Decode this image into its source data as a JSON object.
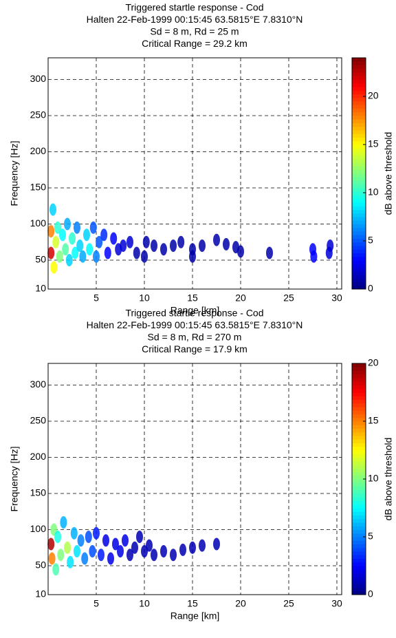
{
  "chart_data": [
    {
      "type": "scatter",
      "colormap": "jet",
      "grid": true,
      "title": [
        "Triggered startle response - Cod",
        "Halten 22-Feb-1999 00:15:45 63.5815°E    7.8310°N",
        "Sd = 8 m, Rd = 25 m",
        "Critical Range = 29.2 km"
      ],
      "xlabel": "Range [km]",
      "ylabel": "Frequency [Hz]",
      "colorbar_label": "dB above threshold",
      "xlim": [
        0,
        30.5
      ],
      "ylim": [
        10,
        330
      ],
      "clim": [
        0,
        24
      ],
      "xticks": [
        5,
        10,
        15,
        20,
        25,
        30
      ],
      "yticks": [
        10,
        50,
        100,
        150,
        200,
        250,
        300
      ],
      "cticks": [
        0,
        5,
        10,
        15,
        20
      ],
      "x": [
        0.3,
        0.3,
        0.5,
        0.6,
        0.8,
        1,
        1.2,
        1.5,
        1.8,
        2,
        2.2,
        2.5,
        2.8,
        3,
        3.3,
        3.6,
        4,
        4.3,
        4.7,
        5,
        5.3,
        5.8,
        6.2,
        6.8,
        7.3,
        7.8,
        8.5,
        9.2,
        10,
        10.2,
        11,
        12,
        13,
        13.8,
        15,
        15,
        16,
        17.5,
        18.5,
        19.5,
        20,
        23,
        27.5,
        27.6,
        29.2,
        29.3
      ],
      "y": [
        60,
        90,
        120,
        40,
        75,
        95,
        55,
        85,
        65,
        100,
        50,
        80,
        60,
        95,
        70,
        55,
        85,
        65,
        95,
        55,
        75,
        85,
        60,
        80,
        65,
        70,
        75,
        60,
        55,
        75,
        70,
        65,
        70,
        75,
        65,
        55,
        70,
        78,
        72,
        68,
        62,
        60,
        65,
        55,
        60,
        70
      ],
      "values": [
        22,
        18,
        8,
        15,
        14,
        10,
        12,
        9,
        11,
        7,
        8,
        10,
        9,
        6,
        8,
        7,
        8,
        9,
        5,
        6,
        5,
        4,
        3,
        3,
        2,
        2,
        2,
        1,
        1,
        1,
        1,
        1,
        1,
        1,
        1,
        1,
        1,
        1,
        1,
        1,
        1,
        1,
        3,
        3,
        2,
        2
      ]
    },
    {
      "type": "scatter",
      "colormap": "jet",
      "grid": true,
      "title": [
        "Triggered startle response - Cod",
        "Halten 22-Feb-1999 00:15:45 63.5815°E    7.8310°N",
        "Sd = 8 m, Rd = 270 m",
        "Critical Range = 17.9 km"
      ],
      "xlabel": "Range [km]",
      "ylabel": "Frequency [Hz]",
      "colorbar_label": "dB above threshold",
      "xlim": [
        0,
        30.5
      ],
      "ylim": [
        10,
        330
      ],
      "clim": [
        0,
        20
      ],
      "xticks": [
        5,
        10,
        15,
        20,
        25,
        30
      ],
      "yticks": [
        10,
        50,
        100,
        150,
        200,
        250,
        300
      ],
      "cticks": [
        0,
        5,
        10,
        15,
        20
      ],
      "x": [
        0.3,
        0.4,
        0.6,
        0.8,
        1,
        1.3,
        1.6,
        2,
        2.3,
        2.7,
        3,
        3.4,
        3.8,
        4.2,
        4.6,
        5,
        5.5,
        6,
        6.5,
        7,
        7.5,
        8,
        8.5,
        9,
        9.5,
        10,
        10.5,
        11,
        12,
        13,
        14,
        15,
        16,
        17.5
      ],
      "y": [
        80,
        60,
        100,
        45,
        90,
        65,
        110,
        75,
        55,
        95,
        70,
        85,
        60,
        90,
        70,
        95,
        65,
        85,
        60,
        80,
        70,
        85,
        65,
        75,
        90,
        70,
        78,
        65,
        70,
        65,
        72,
        75,
        78,
        80
      ],
      "values": [
        19,
        15,
        10,
        9,
        8,
        10,
        6,
        11,
        7,
        6,
        7,
        5,
        5,
        4,
        4,
        3,
        3,
        2,
        2,
        2,
        2,
        2,
        1,
        1,
        1,
        1,
        1,
        1,
        1,
        1,
        1,
        1,
        1,
        1
      ]
    }
  ]
}
